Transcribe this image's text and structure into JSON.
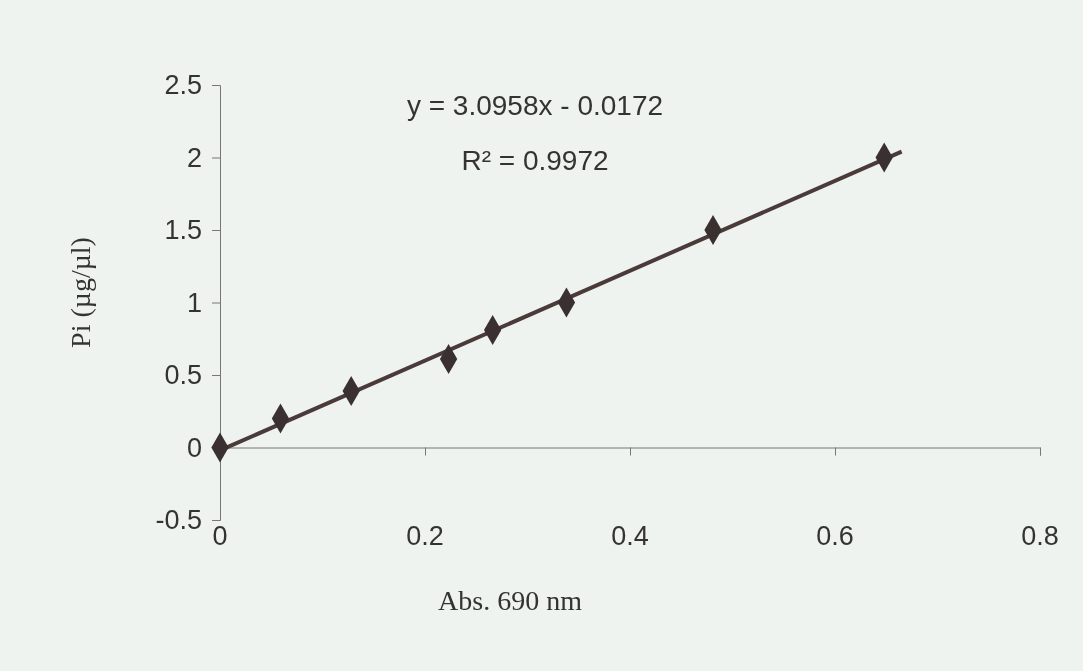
{
  "chart_data": {
    "type": "scatter",
    "xlabel": "Abs. 690 nm",
    "ylabel": "Pi (µg/µl)",
    "annotations": [
      "y = 3.0958x - 0.0172",
      "R² = 0.9972"
    ],
    "xlim": [
      0,
      0.8
    ],
    "xticks": [
      0,
      0.2,
      0.4,
      0.6,
      0.8
    ],
    "ylim": [
      -0.5,
      2.5
    ],
    "yticks": [
      -0.5,
      0,
      0.5,
      1,
      1.5,
      2,
      2.5
    ],
    "grid": false,
    "marker": "diamond",
    "series": [
      {
        "color": "#3a3030",
        "x": [
          0,
          0.059,
          0.128,
          0.223,
          0.266,
          0.338,
          0.481,
          0.648
        ],
        "values": [
          0,
          0.2,
          0.39,
          0.61,
          0.81,
          1.0,
          1.5,
          2.0
        ]
      },
      {
        "type": "line",
        "color": "#4a3a3a",
        "line_style": "solid",
        "marker": "none",
        "x": [
          0,
          0.665
        ],
        "values": [
          -0.02,
          2.04
        ]
      }
    ]
  }
}
